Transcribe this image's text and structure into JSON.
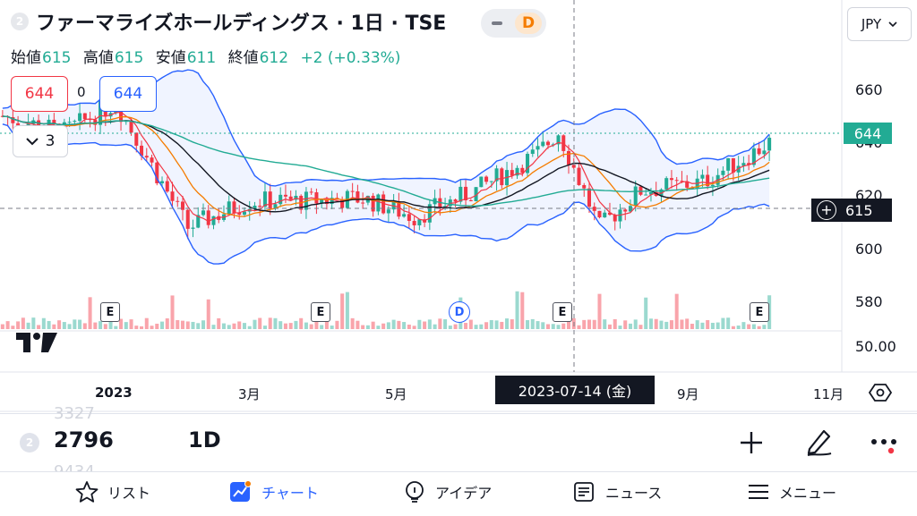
{
  "header": {
    "symbol_badge": "2",
    "title": "ファーマライズホールディングス · 1日 · TSE",
    "toggle_label": "D",
    "ohlc": [
      {
        "key": "始値",
        "value": "615"
      },
      {
        "key": "高値",
        "value": "615"
      },
      {
        "key": "安値",
        "value": "611"
      },
      {
        "key": "終値",
        "value": "612"
      }
    ],
    "change": "+2 (+0.33%)"
  },
  "indicator": {
    "red_value": "644",
    "zero_value": "0",
    "blue_value": "644",
    "collapse_count": "3"
  },
  "currency": {
    "label": "JPY"
  },
  "price_axis": {
    "labels": [
      {
        "text": "660",
        "price": 660
      },
      {
        "text": "640",
        "price": 640
      },
      {
        "text": "620",
        "price": 620
      },
      {
        "text": "600",
        "price": 600
      },
      {
        "text": "580",
        "price": 580
      }
    ],
    "last_price": "644",
    "crosshair_price": "615",
    "volume_label": "50.00"
  },
  "time_axis": {
    "labels": [
      {
        "text": "2023",
        "bold": true
      },
      {
        "text": "3月",
        "bold": false
      },
      {
        "text": "5月",
        "bold": false
      },
      {
        "text": "9月",
        "bold": false
      },
      {
        "text": "11月",
        "bold": false
      }
    ],
    "crosshair_date": "2023-07-14 (金)"
  },
  "events": [
    {
      "type": "earnings",
      "label": "E"
    },
    {
      "type": "earnings",
      "label": "E"
    },
    {
      "type": "dividend",
      "label": "D"
    },
    {
      "type": "earnings",
      "label": "E"
    },
    {
      "type": "earnings",
      "label": "E"
    }
  ],
  "colors": {
    "up": "#22ab94",
    "down": "#f23645",
    "bollinger": "#2962ff",
    "ma_long": "#22ab94",
    "accent": "#2962ff"
  },
  "bottom_bar": {
    "badge": "2",
    "code": "2796",
    "interval": "1D",
    "ghost_above": "3327",
    "ghost_below": "9434"
  },
  "nav": {
    "items": [
      {
        "label": "リスト",
        "icon": "star-icon"
      },
      {
        "label": "チャート",
        "icon": "chart-icon"
      },
      {
        "label": "アイデア",
        "icon": "lightbulb-icon"
      },
      {
        "label": "ニュース",
        "icon": "news-icon"
      },
      {
        "label": "メニュー",
        "icon": "menu-icon"
      }
    ]
  }
}
